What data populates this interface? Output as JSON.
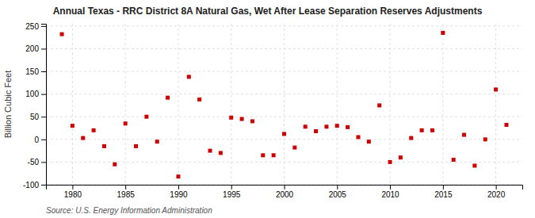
{
  "chart_data": {
    "type": "scatter",
    "title": "Annual Texas - RRC District 8A Natural Gas, Wet After Lease Separation Reserves Adjustments",
    "ylabel": "Billion Cubic Feet",
    "annotations": [
      "Source: U.S. Energy Information Administration"
    ],
    "x": [
      1979,
      1980,
      1981,
      1982,
      1983,
      1984,
      1985,
      1986,
      1987,
      1988,
      1989,
      1990,
      1991,
      1992,
      1993,
      1994,
      1995,
      1996,
      1997,
      1998,
      1999,
      2000,
      2001,
      2002,
      2003,
      2004,
      2005,
      2006,
      2007,
      2008,
      2009,
      2010,
      2011,
      2012,
      2013,
      2014,
      2015,
      2016,
      2017,
      2018,
      2019,
      2020,
      2021
    ],
    "values": [
      232,
      30,
      3,
      20,
      -15,
      -55,
      35,
      -15,
      50,
      -5,
      92,
      -82,
      138,
      88,
      -25,
      -30,
      48,
      45,
      40,
      -35,
      -35,
      12,
      -18,
      28,
      18,
      28,
      30,
      27,
      5,
      -5,
      75,
      -50,
      -40,
      3,
      20,
      20,
      235,
      -45,
      10,
      -58,
      0,
      110,
      32
    ],
    "color": "#cc0000",
    "marker": "square",
    "xlim": [
      1977.5,
      2022.5
    ],
    "ylim": [
      -100,
      255
    ],
    "xticks": [
      1980,
      1985,
      1990,
      1995,
      2000,
      2005,
      2010,
      2015,
      2020
    ],
    "yticks": [
      -100,
      -50,
      0,
      50,
      100,
      150,
      200,
      250
    ],
    "grid": true
  }
}
